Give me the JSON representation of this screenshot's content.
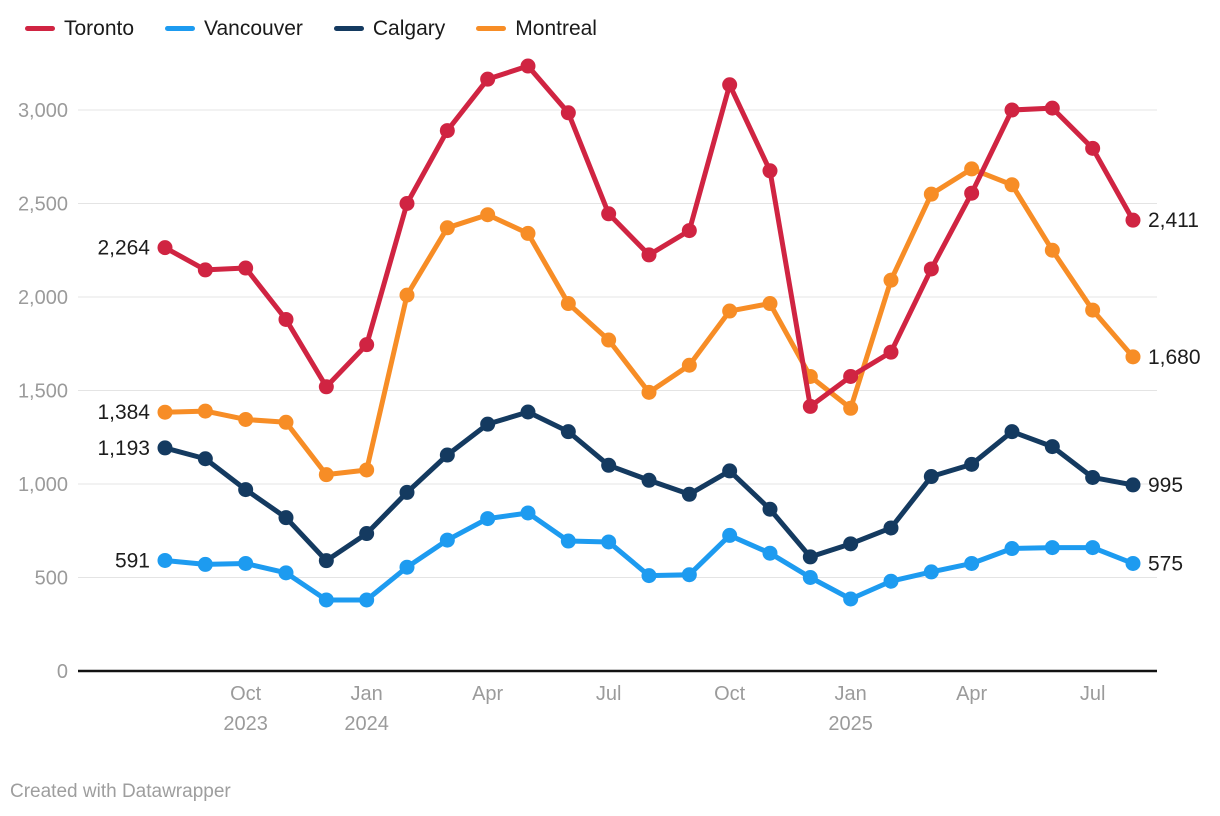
{
  "legend": {
    "items": [
      {
        "label": "Toronto",
        "color": "#d02442"
      },
      {
        "label": "Vancouver",
        "color": "#1d9bf0"
      },
      {
        "label": "Calgary",
        "color": "#143a60"
      },
      {
        "label": "Montreal",
        "color": "#f78d26"
      }
    ]
  },
  "chart_data": {
    "type": "line",
    "x": [
      "Aug 2023",
      "Sep 2023",
      "Oct 2023",
      "Nov 2023",
      "Dec 2023",
      "Jan 2024",
      "Feb 2024",
      "Mar 2024",
      "Apr 2024",
      "May 2024",
      "Jun 2024",
      "Jul 2024",
      "Aug 2024",
      "Sep 2024",
      "Oct 2024",
      "Nov 2024",
      "Dec 2024",
      "Jan 2025",
      "Feb 2025",
      "Mar 2025",
      "Apr 2025",
      "May 2025",
      "Jun 2025",
      "Jul 2025",
      "Aug 2025"
    ],
    "series": [
      {
        "name": "Vancouver",
        "color": "#1d9bf0",
        "values": [
          591,
          570,
          575,
          525,
          380,
          380,
          555,
          700,
          815,
          845,
          695,
          690,
          510,
          515,
          725,
          630,
          500,
          385,
          480,
          530,
          575,
          655,
          660,
          660,
          575
        ],
        "start_label": "591",
        "end_label": "575"
      },
      {
        "name": "Calgary",
        "color": "#143a60",
        "values": [
          1193,
          1135,
          970,
          820,
          590,
          735,
          955,
          1155,
          1320,
          1385,
          1280,
          1100,
          1020,
          945,
          1070,
          865,
          610,
          680,
          765,
          1040,
          1105,
          1280,
          1200,
          1035,
          995
        ],
        "start_label": "1,193",
        "end_label": "995"
      },
      {
        "name": "Montreal",
        "color": "#f78d26",
        "values": [
          1384,
          1390,
          1345,
          1330,
          1050,
          1075,
          2010,
          2370,
          2440,
          2340,
          1965,
          1770,
          1490,
          1635,
          1925,
          1965,
          1575,
          1405,
          2090,
          2550,
          2685,
          2600,
          2250,
          1930,
          1680
        ],
        "start_label": "1,384",
        "end_label": "1,680"
      },
      {
        "name": "Toronto",
        "color": "#d02442",
        "values": [
          2264,
          2145,
          2155,
          1880,
          1520,
          1745,
          2500,
          2890,
          3165,
          3235,
          2985,
          2445,
          2225,
          2355,
          3135,
          2675,
          1415,
          1575,
          1705,
          2150,
          2555,
          3000,
          3010,
          2795,
          2411
        ],
        "start_label": "2,264",
        "end_label": "2,411"
      }
    ],
    "ylim": [
      0,
      3250
    ],
    "yticks": [
      {
        "value": 0,
        "label": "0"
      },
      {
        "value": 500,
        "label": "500"
      },
      {
        "value": 1000,
        "label": "1,000"
      },
      {
        "value": 1500,
        "label": "1,500"
      },
      {
        "value": 2000,
        "label": "2,000"
      },
      {
        "value": 2500,
        "label": "2,500"
      },
      {
        "value": 3000,
        "label": "3,000"
      }
    ],
    "xticks": [
      {
        "month_index": 2,
        "line1": "Oct",
        "line2": "2023"
      },
      {
        "month_index": 5,
        "line1": "Jan",
        "line2": "2024"
      },
      {
        "month_index": 8,
        "line1": "Apr",
        "line2": ""
      },
      {
        "month_index": 11,
        "line1": "Jul",
        "line2": ""
      },
      {
        "month_index": 14,
        "line1": "Oct",
        "line2": ""
      },
      {
        "month_index": 17,
        "line1": "Jan",
        "line2": "2025"
      },
      {
        "month_index": 20,
        "line1": "Apr",
        "line2": ""
      },
      {
        "month_index": 23,
        "line1": "Jul",
        "line2": ""
      }
    ],
    "grid": "horizontal",
    "legend_position": "top-left"
  },
  "footer": {
    "credit": "Created with Datawrapper"
  }
}
